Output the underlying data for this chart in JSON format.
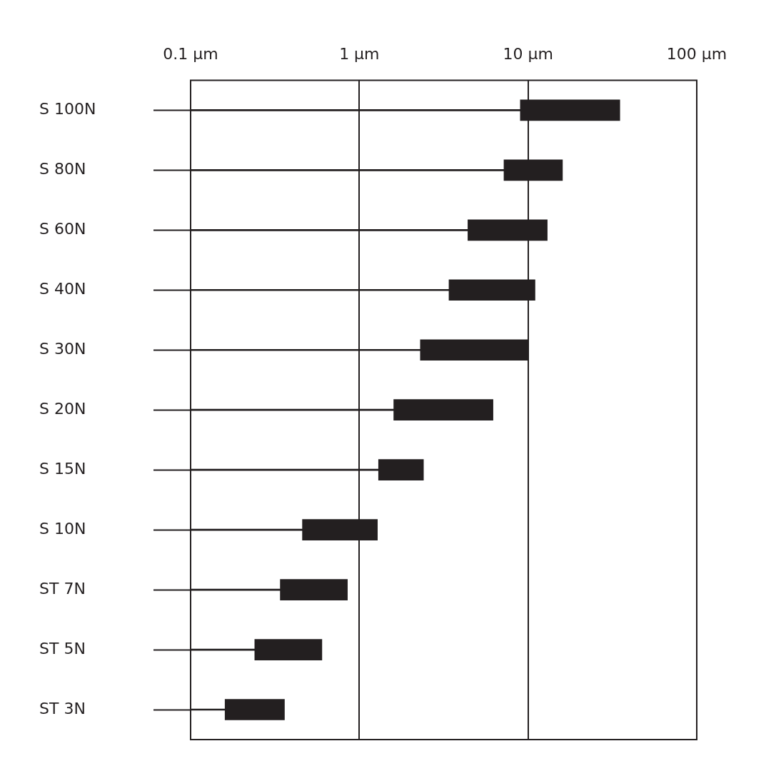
{
  "chart_data": {
    "type": "bar",
    "orientation": "horizontal",
    "stacked": true,
    "categories": [
      "S 100N",
      "S 80N",
      "S 60N",
      "S 40N",
      "S 30N",
      "S 20N",
      "S 15N",
      "S 10N",
      "ST 7N",
      "ST 5N",
      "ST 3N"
    ],
    "series": [
      {
        "color": "#231f20",
        "values": [
          9,
          7.2,
          4.4,
          3.4,
          2.3,
          1.6,
          1.3,
          0.46,
          0.34,
          0.24,
          0.16
        ]
      },
      {
        "color": "#231f20",
        "values": [
          26,
          8.8,
          8.6,
          7.6,
          7.7,
          4.6,
          1.1,
          0.82,
          0.51,
          0.36,
          0.2
        ]
      }
    ],
    "log": "x",
    "xlim": [
      0.1,
      100
    ],
    "xticks": [
      {
        "value": 0.1,
        "label": "0.1 µm"
      },
      {
        "value": 1,
        "label": "1 µm"
      },
      {
        "value": 10,
        "label": "10 µm"
      },
      {
        "value": 100,
        "label": "100 µm"
      }
    ],
    "grid": "x",
    "legend": false
  }
}
